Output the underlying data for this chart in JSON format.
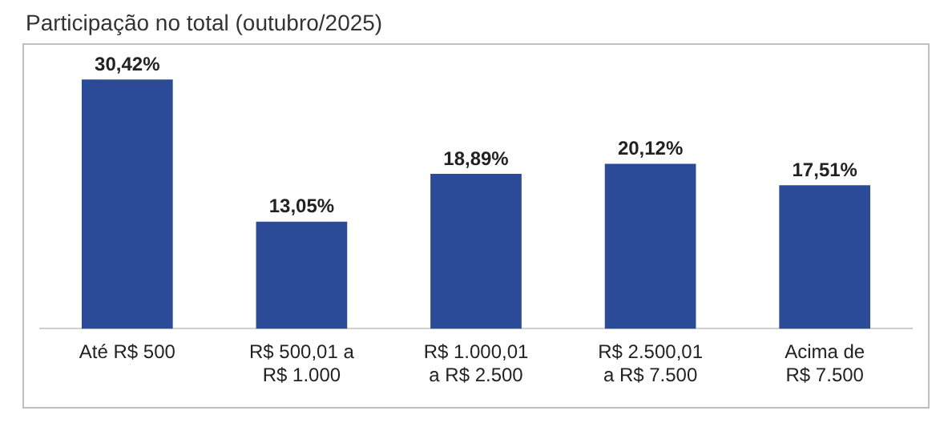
{
  "chart_data": {
    "type": "bar",
    "title": "Participação no total (outubro/2025)",
    "categories": [
      "Até R$ 500",
      "R$ 500,01 a\nR$ 1.000",
      "R$ 1.000,01\na R$ 2.500",
      "R$ 2.500,01\na R$ 7.500",
      "Acima de\nR$ 7.500"
    ],
    "values": [
      30.42,
      13.05,
      18.89,
      20.12,
      17.51
    ],
    "value_labels": [
      "30,42%",
      "13,05%",
      "18,89%",
      "20,12%",
      "17,51%"
    ],
    "color": "#2b4b98",
    "grid": false,
    "legend": false
  }
}
